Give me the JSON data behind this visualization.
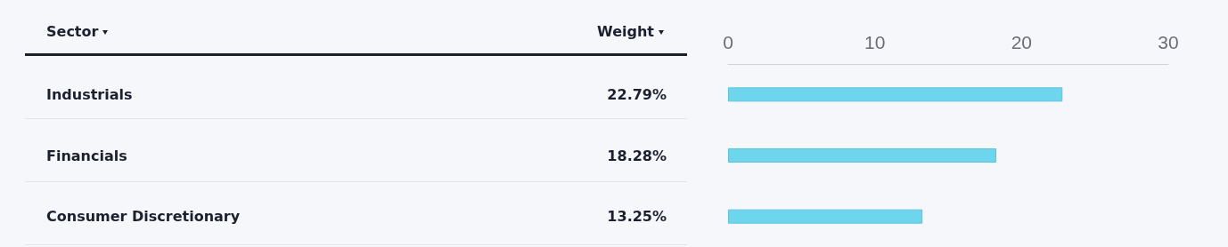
{
  "chart_data": {
    "type": "bar",
    "orientation": "horizontal",
    "ylabel": "Sector",
    "annotations": [
      "Weight"
    ],
    "categories": [
      "Industrials",
      "Financials",
      "Consumer Discretionary"
    ],
    "values": [
      22.79,
      18.28,
      13.25
    ],
    "value_labels": [
      "22.79%",
      "18.28%",
      "13.25%"
    ],
    "color": "#6dd6ec",
    "x2lim": [
      0,
      30
    ],
    "x2ticks": [
      0,
      10,
      20,
      30
    ],
    "grid": false
  }
}
